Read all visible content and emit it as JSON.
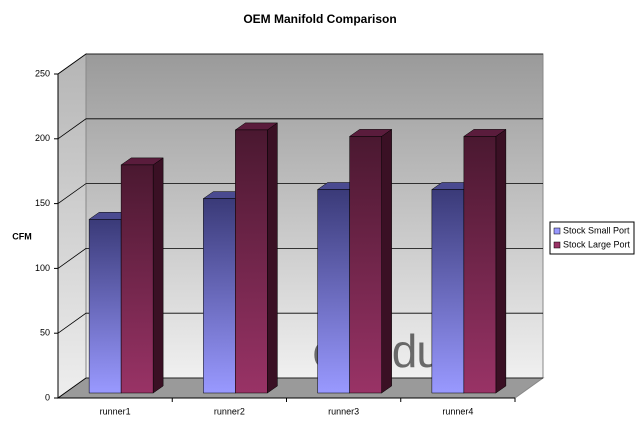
{
  "chart_data": {
    "type": "bar3d",
    "title": "OEM Manifold Comparison",
    "y_label": "CFM",
    "watermark": "elitedubs",
    "categories": [
      "runner1",
      "runner2",
      "runner3",
      "runner4"
    ],
    "series": [
      {
        "name": "Stock Small Port",
        "color": "#9999ff",
        "values": [
          134,
          150,
          157,
          157
        ]
      },
      {
        "name": "Stock Large Port",
        "color": "#993366",
        "values": [
          176,
          203,
          198,
          198
        ]
      }
    ],
    "ylim": [
      0,
      250
    ],
    "yticks": [
      0,
      50,
      100,
      150,
      200,
      250
    ],
    "grid": true,
    "legend": "right"
  }
}
